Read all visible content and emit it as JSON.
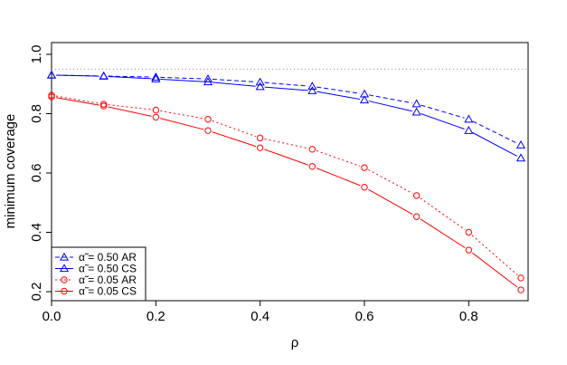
{
  "chart_data": {
    "type": "line",
    "title": "",
    "xlabel": "ρ",
    "ylabel": "minimum coverage",
    "xlim": [
      0,
      0.9
    ],
    "ylim": [
      0.2,
      1.0
    ],
    "x": [
      0,
      0.1,
      0.2,
      0.3,
      0.4,
      0.5,
      0.6,
      0.7,
      0.8,
      0.9
    ],
    "x_ticks": [
      0,
      0.2,
      0.4,
      0.6,
      0.8
    ],
    "x_tick_labels": [
      "0.0",
      "0.2",
      "0.4",
      "0.6",
      "0.8"
    ],
    "y_ticks": [
      0.2,
      0.4,
      0.6,
      0.8,
      1.0
    ],
    "y_tick_labels": [
      "0.2",
      "0.4",
      "0.6",
      "0.8",
      "1.0"
    ],
    "reference_line": {
      "y": 0.95,
      "style": "dotted",
      "color": "#8c8c8c"
    },
    "legend": {
      "position": "bottom-left"
    },
    "series": [
      {
        "name": "α̃ = 0.50 AR",
        "color": "#0000ff",
        "dash": "dashed",
        "marker": "triangle",
        "values": [
          0.93,
          0.927,
          0.923,
          0.917,
          0.906,
          0.892,
          0.866,
          0.833,
          0.781,
          0.694
        ]
      },
      {
        "name": "α̃ = 0.50 CS",
        "color": "#0000ff",
        "dash": "solid",
        "marker": "triangle",
        "values": [
          0.93,
          0.926,
          0.917,
          0.907,
          0.891,
          0.877,
          0.846,
          0.805,
          0.743,
          0.65
        ]
      },
      {
        "name": "α̃ = 0.05 AR",
        "color": "#ff0000",
        "dash": "dotted",
        "marker": "circle",
        "values": [
          0.862,
          0.832,
          0.812,
          0.781,
          0.718,
          0.68,
          0.618,
          0.524,
          0.4,
          0.246
        ]
      },
      {
        "name": "α̃ = 0.05 CS",
        "color": "#ff0000",
        "dash": "solid",
        "marker": "circle",
        "values": [
          0.857,
          0.826,
          0.788,
          0.743,
          0.685,
          0.622,
          0.552,
          0.453,
          0.34,
          0.206
        ]
      }
    ]
  }
}
